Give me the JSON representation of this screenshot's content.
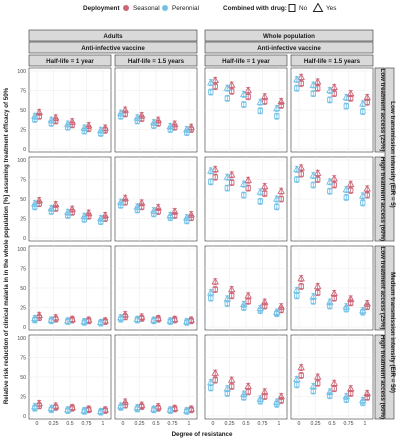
{
  "legend": {
    "deployment_title": "Deployment",
    "seasonal_label": "Seasonal",
    "perennial_label": "Perennial",
    "drug_title": "Combined with drug:",
    "no_label": "No",
    "yes_label": "Yes"
  },
  "colors": {
    "seasonal": "#cc6677",
    "perennial": "#72c1e6"
  },
  "chart_data": {
    "type": "scatter",
    "title": "",
    "xlabel": "Degree of resistance",
    "ylabel": "Relative risk reduction of clinical malaria in in the whole population [%] assuming treatment efficacy of 50%",
    "x": [
      0,
      0.25,
      0.5,
      0.75,
      1
    ],
    "x_tick_labels": [
      "0",
      "0.25",
      "0.5",
      "0.75",
      "1"
    ],
    "ylim": [
      0,
      100
    ],
    "y_ticks": [
      0,
      25,
      50,
      75,
      100
    ],
    "column_groups": [
      {
        "label": "Adults",
        "sublabel": "Anti-infective vaccine",
        "columns": [
          "Half-life = 1 year",
          "Half-life = 1.5 years"
        ]
      },
      {
        "label": "Whole population",
        "sublabel": "Anti-infective vaccine",
        "columns": [
          "Half-life = 1 year",
          "Half-life = 1.5 years"
        ]
      }
    ],
    "row_groups": [
      {
        "label": "Low transmission intensity (EIR = 5)",
        "rows": [
          "Low treatment access (25%)",
          "High treatment access (60%)"
        ]
      },
      {
        "label": "Medium transmission intensity (EIR = 50)",
        "rows": [
          "Low treatment access (25%)",
          "High treatment access (60%)"
        ]
      }
    ],
    "series_keys": [
      "seasonal_no",
      "seasonal_yes",
      "perennial_no",
      "perennial_yes"
    ],
    "panels": [
      [
        {
          "seasonal_no": [
            42,
            36,
            31,
            26,
            24
          ],
          "seasonal_yes": [
            47,
            40,
            35,
            30,
            27
          ],
          "perennial_no": [
            38,
            33,
            28,
            23,
            20
          ],
          "perennial_yes": [
            42,
            37,
            32,
            27,
            24
          ]
        },
        {
          "seasonal_no": [
            45,
            39,
            33,
            28,
            25
          ],
          "seasonal_yes": [
            50,
            43,
            37,
            32,
            28
          ],
          "perennial_no": [
            42,
            36,
            30,
            25,
            21
          ],
          "perennial_yes": [
            46,
            40,
            34,
            29,
            25
          ]
        },
        {
          "seasonal_no": [
            80,
            74,
            67,
            61,
            56
          ],
          "seasonal_yes": [
            88,
            82,
            75,
            67,
            61
          ],
          "perennial_no": [
            73,
            65,
            57,
            49,
            42
          ],
          "perennial_yes": [
            85,
            78,
            70,
            60,
            52
          ]
        },
        {
          "seasonal_no": [
            84,
            78,
            71,
            65,
            60
          ],
          "seasonal_yes": [
            92,
            86,
            79,
            71,
            66
          ],
          "perennial_no": [
            78,
            71,
            63,
            55,
            48
          ],
          "perennial_yes": [
            89,
            82,
            75,
            66,
            58
          ]
        }
      ],
      [
        {
          "seasonal_no": [
            44,
            38,
            33,
            28,
            25
          ],
          "seasonal_yes": [
            48,
            43,
            37,
            32,
            29
          ],
          "perennial_no": [
            40,
            34,
            29,
            24,
            21
          ],
          "perennial_yes": [
            44,
            38,
            33,
            28,
            25
          ]
        },
        {
          "seasonal_no": [
            46,
            40,
            34,
            29,
            26
          ],
          "seasonal_yes": [
            51,
            45,
            39,
            34,
            30
          ],
          "perennial_no": [
            42,
            36,
            31,
            26,
            22
          ],
          "perennial_yes": [
            46,
            40,
            35,
            29,
            26
          ]
        },
        {
          "seasonal_no": [
            78,
            71,
            64,
            57,
            50
          ],
          "seasonal_yes": [
            88,
            81,
            74,
            66,
            60
          ],
          "perennial_no": [
            72,
            64,
            55,
            47,
            40
          ],
          "perennial_yes": [
            86,
            78,
            69,
            59,
            50
          ]
        },
        {
          "seasonal_no": [
            82,
            75,
            68,
            61,
            55
          ],
          "seasonal_yes": [
            90,
            83,
            76,
            69,
            63
          ],
          "perennial_no": [
            75,
            68,
            60,
            52,
            45
          ],
          "perennial_yes": [
            88,
            80,
            72,
            62,
            54
          ]
        }
      ],
      [
        {
          "seasonal_no": [
            12,
            10,
            9,
            8,
            7
          ],
          "seasonal_yes": [
            15,
            12,
            10,
            9,
            8
          ],
          "perennial_no": [
            9,
            8,
            7,
            6,
            5
          ],
          "perennial_yes": [
            11,
            9,
            8,
            7,
            6
          ]
        },
        {
          "seasonal_no": [
            13,
            11,
            10,
            9,
            8
          ],
          "seasonal_yes": [
            16,
            13,
            11,
            10,
            9
          ],
          "perennial_no": [
            10,
            9,
            8,
            7,
            6
          ],
          "perennial_yes": [
            12,
            10,
            9,
            8,
            7
          ]
        },
        {
          "seasonal_no": [
            48,
            40,
            33,
            27,
            22
          ],
          "seasonal_yes": [
            58,
            48,
            40,
            32,
            26
          ],
          "perennial_no": [
            37,
            30,
            25,
            21,
            17
          ],
          "perennial_yes": [
            44,
            36,
            29,
            24,
            19
          ]
        },
        {
          "seasonal_no": [
            52,
            44,
            37,
            31,
            26
          ],
          "seasonal_yes": [
            62,
            52,
            43,
            36,
            30
          ],
          "perennial_no": [
            40,
            33,
            27,
            23,
            19
          ],
          "perennial_yes": [
            47,
            39,
            32,
            26,
            21
          ]
        }
      ],
      [
        {
          "seasonal_no": [
            13,
            11,
            10,
            8,
            7
          ],
          "seasonal_yes": [
            16,
            13,
            11,
            9,
            8
          ],
          "perennial_no": [
            10,
            8,
            7,
            6,
            5
          ],
          "perennial_yes": [
            12,
            10,
            8,
            7,
            6
          ]
        },
        {
          "seasonal_no": [
            14,
            12,
            10,
            9,
            8
          ],
          "seasonal_yes": [
            18,
            14,
            12,
            10,
            9
          ],
          "perennial_no": [
            11,
            9,
            8,
            7,
            6
          ],
          "perennial_yes": [
            13,
            11,
            9,
            8,
            7
          ]
        },
        {
          "seasonal_no": [
            46,
            38,
            31,
            25,
            20
          ],
          "seasonal_yes": [
            55,
            46,
            38,
            31,
            25
          ],
          "perennial_no": [
            36,
            29,
            24,
            19,
            15
          ],
          "perennial_yes": [
            43,
            35,
            28,
            22,
            18
          ]
        },
        {
          "seasonal_no": [
            52,
            42,
            35,
            29,
            24
          ],
          "seasonal_yes": [
            62,
            50,
            42,
            35,
            29
          ],
          "perennial_no": [
            40,
            32,
            26,
            21,
            17
          ],
          "perennial_yes": [
            47,
            38,
            31,
            25,
            20
          ]
        }
      ]
    ]
  }
}
